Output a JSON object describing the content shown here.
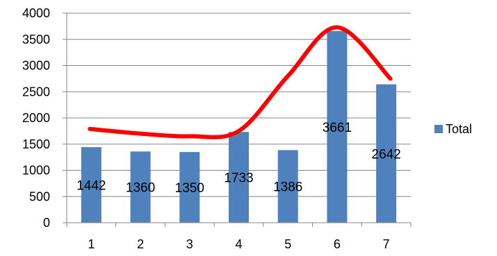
{
  "chart_data": {
    "type": "bar",
    "categories": [
      "1",
      "2",
      "3",
      "4",
      "5",
      "6",
      "7"
    ],
    "series": [
      {
        "name": "Total",
        "values": [
          1442,
          1360,
          1350,
          1733,
          1386,
          3661,
          2642
        ]
      }
    ],
    "data_labels": [
      "1442",
      "1360",
      "1350",
      "1733",
      "1386",
      "3661",
      "2642"
    ],
    "ylim": [
      0,
      4000
    ],
    "yticks": [
      0,
      500,
      1000,
      1500,
      2000,
      2500,
      3000,
      3500,
      4000
    ],
    "ytick_labels": [
      "0",
      "500",
      "1000",
      "1500",
      "2000",
      "2500",
      "3000",
      "3500",
      "4000"
    ],
    "title": "",
    "xlabel": "",
    "ylabel": "",
    "grid": true,
    "legend": {
      "position": "right",
      "entries": [
        "Total"
      ]
    },
    "overlay": {
      "type": "freehand-curve",
      "color": "#ff0000",
      "points": [
        [
          1,
          1790
        ],
        [
          2,
          1700
        ],
        [
          3,
          1650
        ],
        [
          4,
          1750
        ],
        [
          5,
          2800
        ],
        [
          6,
          3730
        ],
        [
          7,
          2750
        ]
      ]
    },
    "colors": {
      "bar": "#4f81bd",
      "overlay": "#ff0000",
      "grid": "#868686",
      "axis": "#868686"
    }
  }
}
